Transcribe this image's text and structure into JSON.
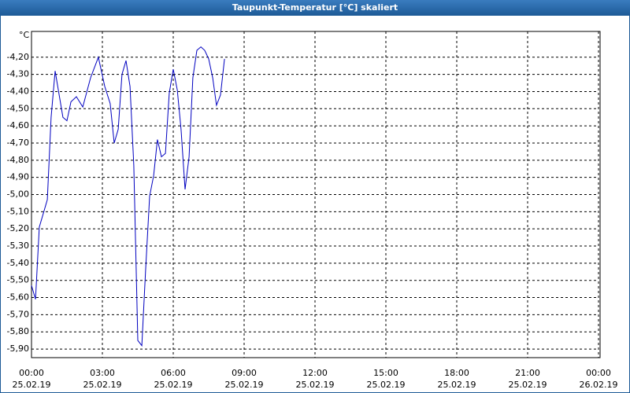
{
  "chart_data": {
    "type": "line",
    "title": "Taupunkt-Temperatur [°C] skaliert",
    "y_unit": "°C",
    "x": [
      0,
      0.17,
      0.33,
      0.67,
      0.83,
      1,
      1.33,
      1.5,
      1.67,
      1.9,
      2.17,
      2.5,
      2.83,
      3.1,
      3.33,
      3.5,
      3.67,
      3.83,
      4,
      4.17,
      4.33,
      4.5,
      4.67,
      4.83,
      5,
      5.17,
      5.33,
      5.5,
      5.67,
      5.83,
      6,
      6.17,
      6.33,
      6.5,
      6.67,
      6.83,
      7,
      7.17,
      7.33,
      7.5,
      7.67,
      7.83,
      8,
      8.17
    ],
    "series": [
      {
        "color": "#0000c0",
        "values": [
          -5.53,
          -5.61,
          -5.19,
          -5.03,
          -4.55,
          -4.28,
          -4.55,
          -4.57,
          -4.46,
          -4.43,
          -4.49,
          -4.32,
          -4.2,
          -4.37,
          -4.47,
          -4.7,
          -4.62,
          -4.3,
          -4.22,
          -4.37,
          -4.83,
          -5.85,
          -5.88,
          -5.44,
          -5.01,
          -4.89,
          -4.68,
          -4.78,
          -4.76,
          -4.41,
          -4.27,
          -4.39,
          -4.62,
          -4.97,
          -4.78,
          -4.32,
          -4.16,
          -4.14,
          -4.16,
          -4.21,
          -4.32,
          -4.48,
          -4.42,
          -4.21
        ]
      }
    ],
    "xlim": [
      0,
      24
    ],
    "xticks": [
      {
        "value": 0,
        "label": [
          "00:00",
          "25.02.19"
        ]
      },
      {
        "value": 3,
        "label": [
          "03:00",
          "25.02.19"
        ]
      },
      {
        "value": 6,
        "label": [
          "06:00",
          "25.02.19"
        ]
      },
      {
        "value": 9,
        "label": [
          "09:00",
          "25.02.19"
        ]
      },
      {
        "value": 12,
        "label": [
          "12:00",
          "25.02.19"
        ]
      },
      {
        "value": 15,
        "label": [
          "15:00",
          "25.02.19"
        ]
      },
      {
        "value": 18,
        "label": [
          "18:00",
          "25.02.19"
        ]
      },
      {
        "value": 21,
        "label": [
          "21:00",
          "25.02.19"
        ]
      },
      {
        "value": 24,
        "label": [
          "00:00",
          "26.02.19"
        ]
      }
    ],
    "ylim": [
      -5.95,
      -4.05
    ],
    "yticks": [
      {
        "value": -4.2,
        "label": "-4,20"
      },
      {
        "value": -4.3,
        "label": "-4,30"
      },
      {
        "value": -4.4,
        "label": "-4,40"
      },
      {
        "value": -4.5,
        "label": "-4,50"
      },
      {
        "value": -4.6,
        "label": "-4,60"
      },
      {
        "value": -4.7,
        "label": "-4,70"
      },
      {
        "value": -4.8,
        "label": "-4,80"
      },
      {
        "value": -4.9,
        "label": "-4,90"
      },
      {
        "value": -5.0,
        "label": "-5,00"
      },
      {
        "value": -5.1,
        "label": "-5,10"
      },
      {
        "value": -5.2,
        "label": "-5,20"
      },
      {
        "value": -5.3,
        "label": "-5,30"
      },
      {
        "value": -5.4,
        "label": "-5,40"
      },
      {
        "value": -5.5,
        "label": "-5,50"
      },
      {
        "value": -5.6,
        "label": "-5,60"
      },
      {
        "value": -5.7,
        "label": "-5,70"
      },
      {
        "value": -5.8,
        "label": "-5,80"
      },
      {
        "value": -5.9,
        "label": "-5,90"
      }
    ],
    "grid": true
  }
}
